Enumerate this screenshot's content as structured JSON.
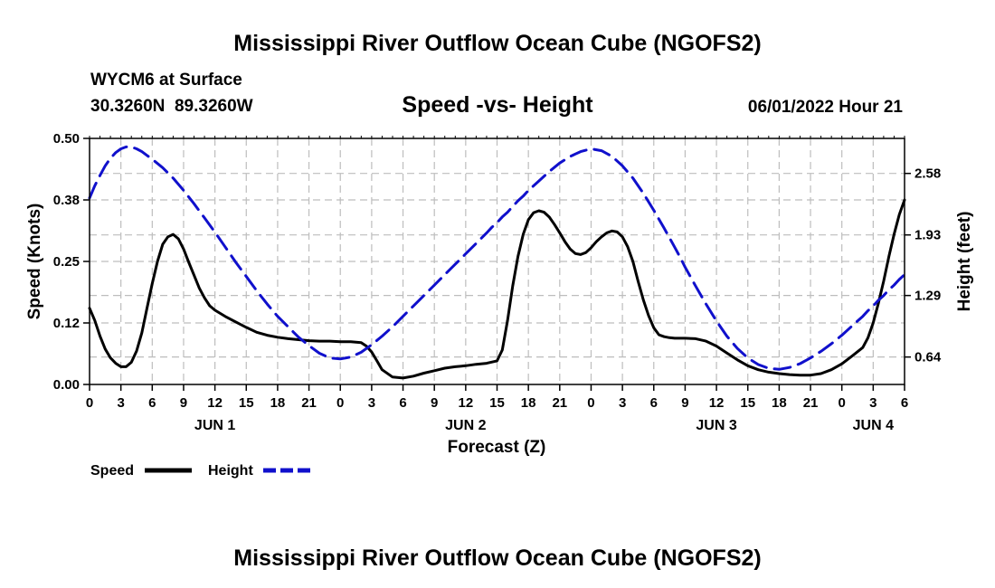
{
  "colors": {
    "speed": "#000000",
    "height": "#1010cc",
    "grid": "#bdbdbd"
  },
  "chart_data": {
    "type": "line",
    "title": "Mississippi River Outflow Ocean Cube (NGOFS2)",
    "station": "WYCM6 at Surface",
    "coords": "30.3260N  89.3260W",
    "subtitle": "Speed -vs- Height",
    "date_label": "06/01/2022 Hour 21",
    "xlabel": "Forecast (Z)",
    "ylabel_left": "Speed (Knots)",
    "ylabel_right": "Height (feet)",
    "footer_title": "Mississippi River Outflow Ocean Cube (NGOFS2)",
    "xlim": [
      0,
      78
    ],
    "ylim_left": [
      0,
      0.5
    ],
    "ylim_right": [
      0.35,
      2.95
    ],
    "x_ticks": [
      0,
      3,
      6,
      9,
      12,
      15,
      18,
      21,
      24,
      27,
      30,
      33,
      36,
      39,
      42,
      45,
      48,
      51,
      54,
      57,
      60,
      63,
      66,
      69,
      72,
      75,
      78
    ],
    "x_tick_labels": [
      "0",
      "3",
      "6",
      "9",
      "12",
      "15",
      "18",
      "21",
      "0",
      "3",
      "6",
      "9",
      "12",
      "15",
      "18",
      "21",
      "0",
      "3",
      "6",
      "9",
      "12",
      "15",
      "18",
      "21",
      "0",
      "3",
      "6"
    ],
    "day_labels": [
      {
        "x": 12,
        "label": "JUN 1"
      },
      {
        "x": 36,
        "label": "JUN 2"
      },
      {
        "x": 60,
        "label": "JUN 3"
      },
      {
        "x": 75,
        "label": "JUN 4"
      }
    ],
    "y_left_ticks": [
      0.0,
      0.125,
      0.25,
      0.375,
      0.5
    ],
    "y_left_tick_labels": [
      "0.00",
      "0.12",
      "0.25",
      "0.38",
      "0.50"
    ],
    "y_right_ticks": [
      0.64,
      1.29,
      1.93,
      2.58
    ],
    "y_right_tick_labels": [
      "0.64",
      "1.29",
      "1.93",
      "2.58"
    ],
    "legend": [
      {
        "name": "Speed",
        "style": "solid"
      },
      {
        "name": "Height",
        "style": "dashed"
      }
    ],
    "series": [
      {
        "name": "Speed",
        "axis": "left",
        "style": "solid",
        "x": [
          0,
          0.5,
          1,
          1.5,
          2,
          2.5,
          3,
          3.5,
          4,
          4.5,
          5,
          5.5,
          6,
          6.5,
          7,
          7.5,
          8,
          8.5,
          9,
          9.5,
          10,
          10.5,
          11,
          11.5,
          12,
          13,
          14,
          15,
          16,
          17,
          18,
          19,
          20,
          21,
          22,
          23,
          24,
          25,
          26,
          26.5,
          27,
          27.5,
          28,
          29,
          30,
          31,
          32,
          33,
          34,
          35,
          36,
          37,
          38,
          39,
          39.5,
          40,
          40.5,
          41,
          41.5,
          42,
          42.5,
          43,
          43.5,
          44,
          44.5,
          45,
          45.5,
          46,
          46.5,
          47,
          47.5,
          48,
          48.5,
          49,
          49.5,
          50,
          50.5,
          51,
          51.5,
          52,
          52.5,
          53,
          53.5,
          54,
          54.5,
          55,
          55.5,
          56,
          57,
          58,
          59,
          60,
          61,
          62,
          63,
          64,
          65,
          66,
          67,
          68,
          69,
          70,
          71,
          72,
          73,
          74,
          74.5,
          75,
          75.5,
          76,
          76.5,
          77,
          77.5,
          78
        ],
        "values": [
          0.155,
          0.13,
          0.098,
          0.072,
          0.054,
          0.043,
          0.036,
          0.036,
          0.045,
          0.068,
          0.105,
          0.155,
          0.205,
          0.25,
          0.285,
          0.3,
          0.305,
          0.296,
          0.275,
          0.248,
          0.222,
          0.196,
          0.176,
          0.16,
          0.151,
          0.138,
          0.127,
          0.116,
          0.106,
          0.1,
          0.096,
          0.093,
          0.091,
          0.089,
          0.088,
          0.088,
          0.087,
          0.087,
          0.085,
          0.078,
          0.066,
          0.048,
          0.03,
          0.015,
          0.013,
          0.017,
          0.023,
          0.028,
          0.033,
          0.036,
          0.038,
          0.041,
          0.043,
          0.048,
          0.07,
          0.13,
          0.2,
          0.26,
          0.305,
          0.335,
          0.349,
          0.353,
          0.35,
          0.34,
          0.325,
          0.308,
          0.29,
          0.275,
          0.266,
          0.264,
          0.268,
          0.278,
          0.29,
          0.3,
          0.308,
          0.312,
          0.31,
          0.3,
          0.28,
          0.25,
          0.21,
          0.172,
          0.14,
          0.115,
          0.101,
          0.097,
          0.095,
          0.094,
          0.094,
          0.093,
          0.088,
          0.078,
          0.064,
          0.05,
          0.038,
          0.03,
          0.025,
          0.022,
          0.02,
          0.019,
          0.019,
          0.022,
          0.03,
          0.042,
          0.058,
          0.075,
          0.095,
          0.125,
          0.165,
          0.21,
          0.26,
          0.305,
          0.345,
          0.375
        ]
      },
      {
        "name": "Height",
        "axis": "right",
        "style": "dashed",
        "x": [
          0,
          0.5,
          1,
          1.5,
          2,
          2.5,
          3,
          3.5,
          4,
          4.5,
          5,
          5.5,
          6,
          7,
          8,
          9,
          10,
          11,
          12,
          13,
          14,
          15,
          16,
          17,
          18,
          19,
          20,
          21,
          22,
          23,
          24,
          25,
          26,
          27,
          28,
          29,
          30,
          31,
          32,
          33,
          34,
          35,
          36,
          37,
          38,
          38.5,
          39,
          39.5,
          40,
          40.5,
          41,
          41.5,
          42,
          43,
          44,
          45,
          46,
          47,
          48,
          49,
          50,
          51,
          52,
          53,
          54,
          55,
          55.5,
          56,
          56.5,
          57,
          57.5,
          58,
          59,
          60,
          61,
          62,
          63,
          64,
          65,
          66,
          67,
          68,
          69,
          70,
          71,
          72,
          73,
          73.5,
          74,
          74.5,
          75,
          75.5,
          76,
          76.5,
          77,
          77.5,
          78
        ],
        "values": [
          2.32,
          2.45,
          2.56,
          2.66,
          2.74,
          2.8,
          2.84,
          2.86,
          2.86,
          2.84,
          2.81,
          2.77,
          2.73,
          2.64,
          2.53,
          2.4,
          2.26,
          2.11,
          1.96,
          1.8,
          1.64,
          1.49,
          1.34,
          1.2,
          1.07,
          0.96,
          0.85,
          0.76,
          0.68,
          0.63,
          0.62,
          0.64,
          0.69,
          0.77,
          0.86,
          0.96,
          1.07,
          1.18,
          1.29,
          1.4,
          1.51,
          1.62,
          1.73,
          1.84,
          1.95,
          2.01,
          2.06,
          2.12,
          2.17,
          2.23,
          2.29,
          2.34,
          2.4,
          2.5,
          2.6,
          2.69,
          2.76,
          2.81,
          2.84,
          2.82,
          2.76,
          2.66,
          2.53,
          2.37,
          2.19,
          2.0,
          1.9,
          1.8,
          1.7,
          1.59,
          1.49,
          1.39,
          1.2,
          1.02,
          0.86,
          0.73,
          0.63,
          0.56,
          0.52,
          0.51,
          0.53,
          0.57,
          0.63,
          0.7,
          0.78,
          0.87,
          0.97,
          1.02,
          1.07,
          1.13,
          1.18,
          1.24,
          1.29,
          1.35,
          1.4,
          1.46,
          1.51
        ]
      }
    ]
  }
}
